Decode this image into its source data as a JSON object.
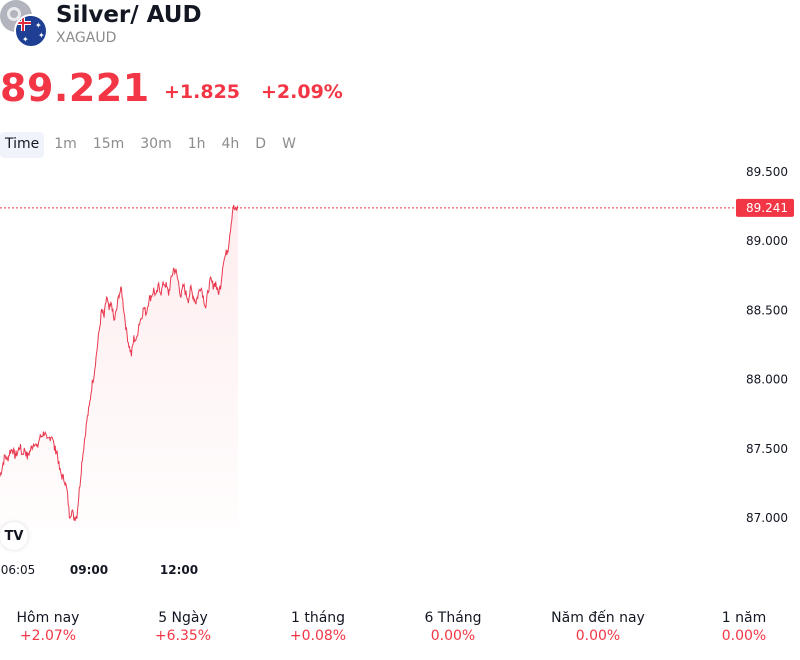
{
  "header": {
    "title": "Silver/ AUD",
    "symbol": "XAGAUD",
    "price": "89.221",
    "change": "+1.825",
    "change_pct": "+2.09%"
  },
  "tabs": [
    "Time",
    "1m",
    "15m",
    "30m",
    "1h",
    "4h",
    "D",
    "W"
  ],
  "active_tab": "Time",
  "colors": {
    "negative": "#f23645",
    "line": "#e8384f",
    "text": "#131722",
    "muted": "#8c8c8c"
  },
  "chart_data": {
    "type": "line",
    "y_ticks": [
      "89.500",
      "89.000",
      "88.500",
      "88.000",
      "87.500",
      "87.000"
    ],
    "y_tick_values": [
      89.5,
      89.0,
      88.5,
      88.0,
      87.5,
      87.0
    ],
    "x_ticks": [
      "06:05",
      "09:00",
      "12:00"
    ],
    "current_value_label": "89.241",
    "current_value": 89.241,
    "ylim": [
      86.8,
      89.7
    ],
    "series": [
      {
        "values": [
          87.3,
          87.38,
          87.45,
          87.42,
          87.48,
          87.5,
          87.45,
          87.47,
          87.52,
          87.46,
          87.5,
          87.44,
          87.48,
          87.52,
          87.55,
          87.5,
          87.58,
          87.6,
          87.62,
          87.55,
          87.58,
          87.6,
          87.5,
          87.48,
          87.35,
          87.3,
          87.28,
          87.2,
          87.02,
          87.05,
          87.0,
          87.02,
          87.2,
          87.4,
          87.55,
          87.7,
          87.8,
          87.95,
          88.05,
          88.2,
          88.35,
          88.5,
          88.45,
          88.6,
          88.5,
          88.55,
          88.42,
          88.5,
          88.62,
          88.65,
          88.5,
          88.35,
          88.25,
          88.18,
          88.3,
          88.28,
          88.4,
          88.45,
          88.52,
          88.48,
          88.58,
          88.6,
          88.65,
          88.6,
          88.68,
          88.63,
          88.7,
          88.68,
          88.62,
          88.72,
          88.8,
          88.78,
          88.7,
          88.6,
          88.68,
          88.62,
          88.58,
          88.66,
          88.6,
          88.56,
          88.62,
          88.68,
          88.6,
          88.52,
          88.65,
          88.72,
          88.68,
          88.7,
          88.62,
          88.68,
          88.85,
          88.9,
          88.95,
          89.1,
          89.25,
          89.22,
          89.24
        ]
      }
    ]
  },
  "performance": [
    {
      "label": "Hôm nay",
      "value": "+2.07%"
    },
    {
      "label": "5 Ngày",
      "value": "+6.35%"
    },
    {
      "label": "1 tháng",
      "value": "+0.08%"
    },
    {
      "label": "6 Tháng",
      "value": "0.00%"
    },
    {
      "label": "Năm đến nay",
      "value": "0.00%"
    },
    {
      "label": "1 năm",
      "value": "0.00%"
    }
  ]
}
